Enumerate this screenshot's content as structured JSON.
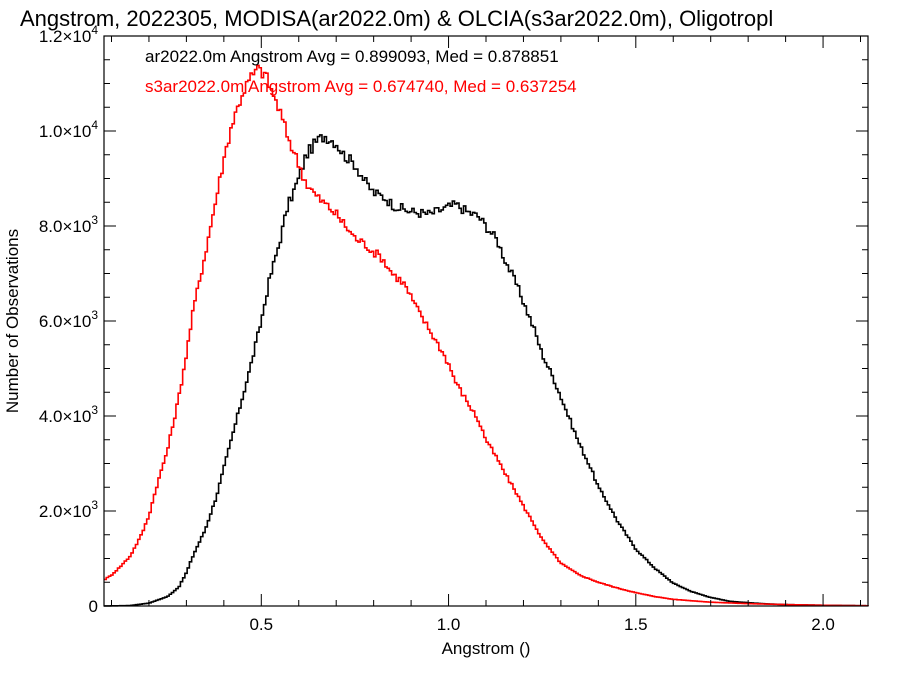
{
  "chart_data": {
    "type": "line",
    "title": "Angstrom, 2022305, MODISA(ar2022.0m) & OLCIA(s3ar2022.0m), Oligotropl",
    "xlabel": "Angstrom ()",
    "ylabel": "Number of Observations",
    "xlim": [
      0.08,
      2.12
    ],
    "ylim": [
      0,
      12000
    ],
    "x_ticks": [
      {
        "value": 0.5,
        "label": "0.5"
      },
      {
        "value": 1.0,
        "label": "1.0"
      },
      {
        "value": 1.5,
        "label": "1.5"
      },
      {
        "value": 2.0,
        "label": "2.0"
      }
    ],
    "y_ticks": [
      {
        "value": 0,
        "mantissa": "0",
        "exponent": ""
      },
      {
        "value": 2000,
        "mantissa": "2.0×10",
        "exponent": "3"
      },
      {
        "value": 4000,
        "mantissa": "4.0×10",
        "exponent": "3"
      },
      {
        "value": 6000,
        "mantissa": "6.0×10",
        "exponent": "3"
      },
      {
        "value": 8000,
        "mantissa": "8.0×10",
        "exponent": "3"
      },
      {
        "value": 10000,
        "mantissa": "1.0×10",
        "exponent": "4"
      },
      {
        "value": 12000,
        "mantissa": "1.2×10",
        "exponent": "4"
      }
    ],
    "annotations": [
      {
        "text": "ar2022.0m Angstrom Avg = 0.899093, Med = 0.878851",
        "color": "#000000"
      },
      {
        "text": "s3ar2022.0m Angstrom Avg = 0.674740, Med = 0.637254",
        "color": "#ff0000"
      }
    ],
    "series": [
      {
        "color": "#000000",
        "points": [
          [
            0.08,
            0
          ],
          [
            0.15,
            10
          ],
          [
            0.2,
            60
          ],
          [
            0.25,
            200
          ],
          [
            0.28,
            400
          ],
          [
            0.3,
            700
          ],
          [
            0.32,
            1100
          ],
          [
            0.35,
            1600
          ],
          [
            0.38,
            2300
          ],
          [
            0.4,
            2900
          ],
          [
            0.42,
            3500
          ],
          [
            0.45,
            4400
          ],
          [
            0.47,
            5000
          ],
          [
            0.5,
            6000
          ],
          [
            0.52,
            6800
          ],
          [
            0.55,
            7700
          ],
          [
            0.57,
            8400
          ],
          [
            0.6,
            9000
          ],
          [
            0.62,
            9500
          ],
          [
            0.65,
            9800
          ],
          [
            0.67,
            9900
          ],
          [
            0.7,
            9750
          ],
          [
            0.72,
            9500
          ],
          [
            0.75,
            9300
          ],
          [
            0.78,
            8900
          ],
          [
            0.8,
            8700
          ],
          [
            0.83,
            8600
          ],
          [
            0.85,
            8450
          ],
          [
            0.88,
            8350
          ],
          [
            0.9,
            8300
          ],
          [
            0.95,
            8250
          ],
          [
            1.0,
            8400
          ],
          [
            1.02,
            8450
          ],
          [
            1.05,
            8300
          ],
          [
            1.08,
            8200
          ],
          [
            1.1,
            8000
          ],
          [
            1.13,
            7700
          ],
          [
            1.15,
            7300
          ],
          [
            1.18,
            6800
          ],
          [
            1.2,
            6400
          ],
          [
            1.23,
            5800
          ],
          [
            1.25,
            5300
          ],
          [
            1.28,
            4800
          ],
          [
            1.3,
            4400
          ],
          [
            1.33,
            3800
          ],
          [
            1.35,
            3400
          ],
          [
            1.38,
            2900
          ],
          [
            1.4,
            2500
          ],
          [
            1.43,
            2100
          ],
          [
            1.45,
            1800
          ],
          [
            1.5,
            1200
          ],
          [
            1.55,
            800
          ],
          [
            1.6,
            480
          ],
          [
            1.65,
            300
          ],
          [
            1.7,
            180
          ],
          [
            1.75,
            100
          ],
          [
            1.8,
            70
          ],
          [
            1.85,
            45
          ],
          [
            1.9,
            30
          ],
          [
            2.0,
            15
          ],
          [
            2.12,
            5
          ]
        ]
      },
      {
        "color": "#ff0000",
        "points": [
          [
            0.08,
            550
          ],
          [
            0.1,
            650
          ],
          [
            0.12,
            800
          ],
          [
            0.15,
            1050
          ],
          [
            0.18,
            1500
          ],
          [
            0.2,
            1900
          ],
          [
            0.22,
            2500
          ],
          [
            0.25,
            3300
          ],
          [
            0.28,
            4400
          ],
          [
            0.3,
            5300
          ],
          [
            0.32,
            6300
          ],
          [
            0.35,
            7400
          ],
          [
            0.38,
            8600
          ],
          [
            0.4,
            9400
          ],
          [
            0.42,
            10100
          ],
          [
            0.45,
            10800
          ],
          [
            0.47,
            11100
          ],
          [
            0.49,
            11300
          ],
          [
            0.51,
            11200
          ],
          [
            0.53,
            10800
          ],
          [
            0.55,
            10400
          ],
          [
            0.57,
            9900
          ],
          [
            0.6,
            9300
          ],
          [
            0.62,
            8900
          ],
          [
            0.65,
            8600
          ],
          [
            0.68,
            8400
          ],
          [
            0.7,
            8250
          ],
          [
            0.72,
            8050
          ],
          [
            0.75,
            7750
          ],
          [
            0.78,
            7600
          ],
          [
            0.8,
            7450
          ],
          [
            0.82,
            7350
          ],
          [
            0.85,
            7000
          ],
          [
            0.88,
            6800
          ],
          [
            0.9,
            6500
          ],
          [
            0.92,
            6200
          ],
          [
            0.95,
            5800
          ],
          [
            0.98,
            5400
          ],
          [
            1.0,
            5100
          ],
          [
            1.02,
            4700
          ],
          [
            1.05,
            4300
          ],
          [
            1.08,
            3900
          ],
          [
            1.1,
            3500
          ],
          [
            1.13,
            3100
          ],
          [
            1.15,
            2800
          ],
          [
            1.18,
            2400
          ],
          [
            1.2,
            2100
          ],
          [
            1.23,
            1700
          ],
          [
            1.25,
            1400
          ],
          [
            1.28,
            1100
          ],
          [
            1.3,
            900
          ],
          [
            1.35,
            650
          ],
          [
            1.4,
            500
          ],
          [
            1.45,
            380
          ],
          [
            1.5,
            280
          ],
          [
            1.55,
            200
          ],
          [
            1.6,
            140
          ],
          [
            1.7,
            80
          ],
          [
            1.8,
            50
          ],
          [
            1.9,
            30
          ],
          [
            2.0,
            15
          ],
          [
            2.12,
            5
          ]
        ]
      }
    ]
  }
}
